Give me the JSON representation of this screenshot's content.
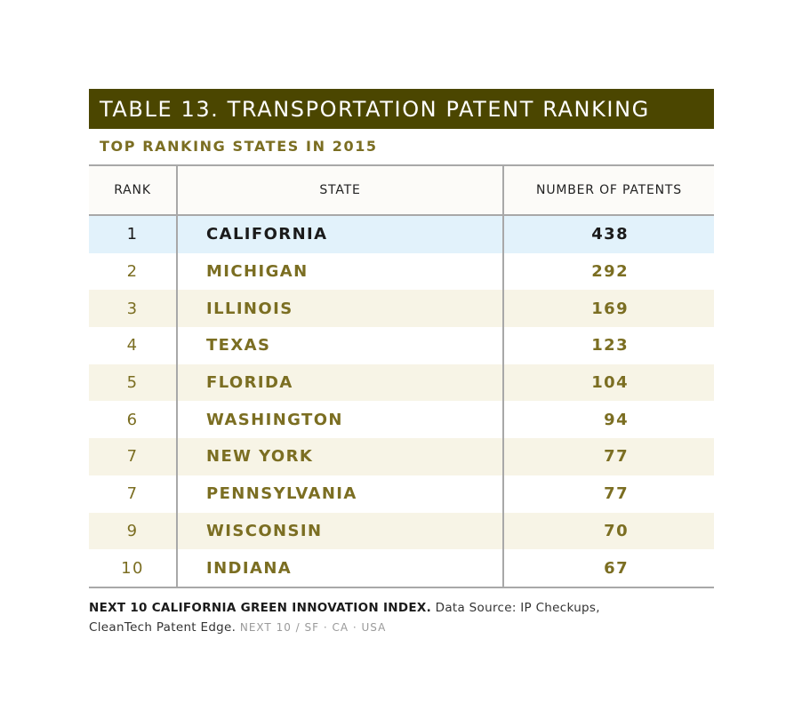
{
  "title": "TABLE 13. TRANSPORTATION PATENT RANKING",
  "subtitle": "TOP RANKING STATES IN 2015",
  "columns": [
    "RANK",
    "STATE",
    "NUMBER OF PATENTS"
  ],
  "rows": [
    {
      "rank": "1",
      "state": "CALIFORNIA",
      "patents": "438"
    },
    {
      "rank": "2",
      "state": "MICHIGAN",
      "patents": "292"
    },
    {
      "rank": "3",
      "state": "ILLINOIS",
      "patents": "169"
    },
    {
      "rank": "4",
      "state": "TEXAS",
      "patents": "123"
    },
    {
      "rank": "5",
      "state": "FLORIDA",
      "patents": "104"
    },
    {
      "rank": "6",
      "state": "WASHINGTON",
      "patents": "94"
    },
    {
      "rank": "7",
      "state": "NEW YORK",
      "patents": "77"
    },
    {
      "rank": "7",
      "state": "PENNSYLVANIA",
      "patents": "77"
    },
    {
      "rank": "9",
      "state": "WISCONSIN",
      "patents": "70"
    },
    {
      "rank": "10",
      "state": "INDIANA",
      "patents": "67"
    }
  ],
  "footer": {
    "source_bold": "NEXT 10 CALIFORNIA GREEN INNOVATION INDEX.",
    "source_text": "Data Source: IP Checkups,",
    "source_text_2": "CleanTech Patent Edge.",
    "org": "NEXT 10  /  SF · CA · USA"
  },
  "colors": {
    "title_bar": "#4b4600",
    "accent_text": "#7b6e22",
    "highlight_row": "#e2f2fb",
    "alt_row": "#f7f4e6"
  }
}
